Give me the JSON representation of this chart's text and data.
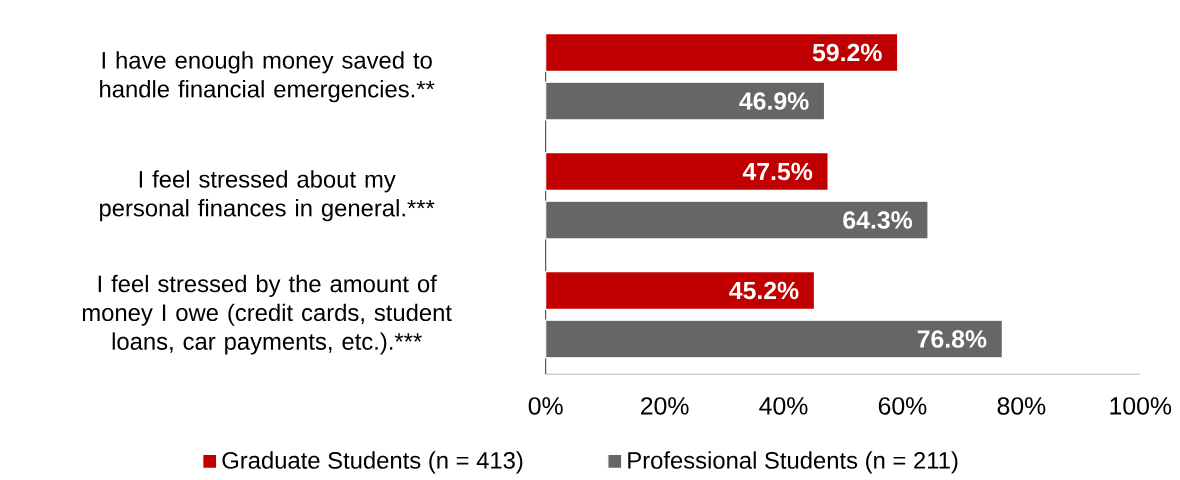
{
  "chart_data": {
    "type": "bar",
    "orientation": "horizontal",
    "categories": [
      "I have enough money saved to handle financial emergencies.**",
      "I feel stressed about my personal finances in general.***",
      "I feel stressed by the amount of money I owe (credit cards, student loans, car payments, etc.).***"
    ],
    "series": [
      {
        "name": "Graduate Students (n = 413)",
        "color": "#c00000",
        "values": [
          59.2,
          47.5,
          45.2
        ],
        "value_labels": [
          "59.2%",
          "47.5%",
          "45.2%"
        ]
      },
      {
        "name": "Professional Students (n = 211)",
        "color": "#666666",
        "values": [
          46.9,
          64.3,
          76.8
        ],
        "value_labels": [
          "46.9%",
          "64.3%",
          "76.8%"
        ]
      }
    ],
    "xlim": [
      0,
      100
    ],
    "xticks": [
      {
        "value": 0,
        "label": "0%"
      },
      {
        "value": 20,
        "label": "20%"
      },
      {
        "value": 40,
        "label": "40%"
      },
      {
        "value": 60,
        "label": "60%"
      },
      {
        "value": 80,
        "label": "80%"
      },
      {
        "value": 100,
        "label": "100%"
      }
    ],
    "legend": "bottom"
  }
}
